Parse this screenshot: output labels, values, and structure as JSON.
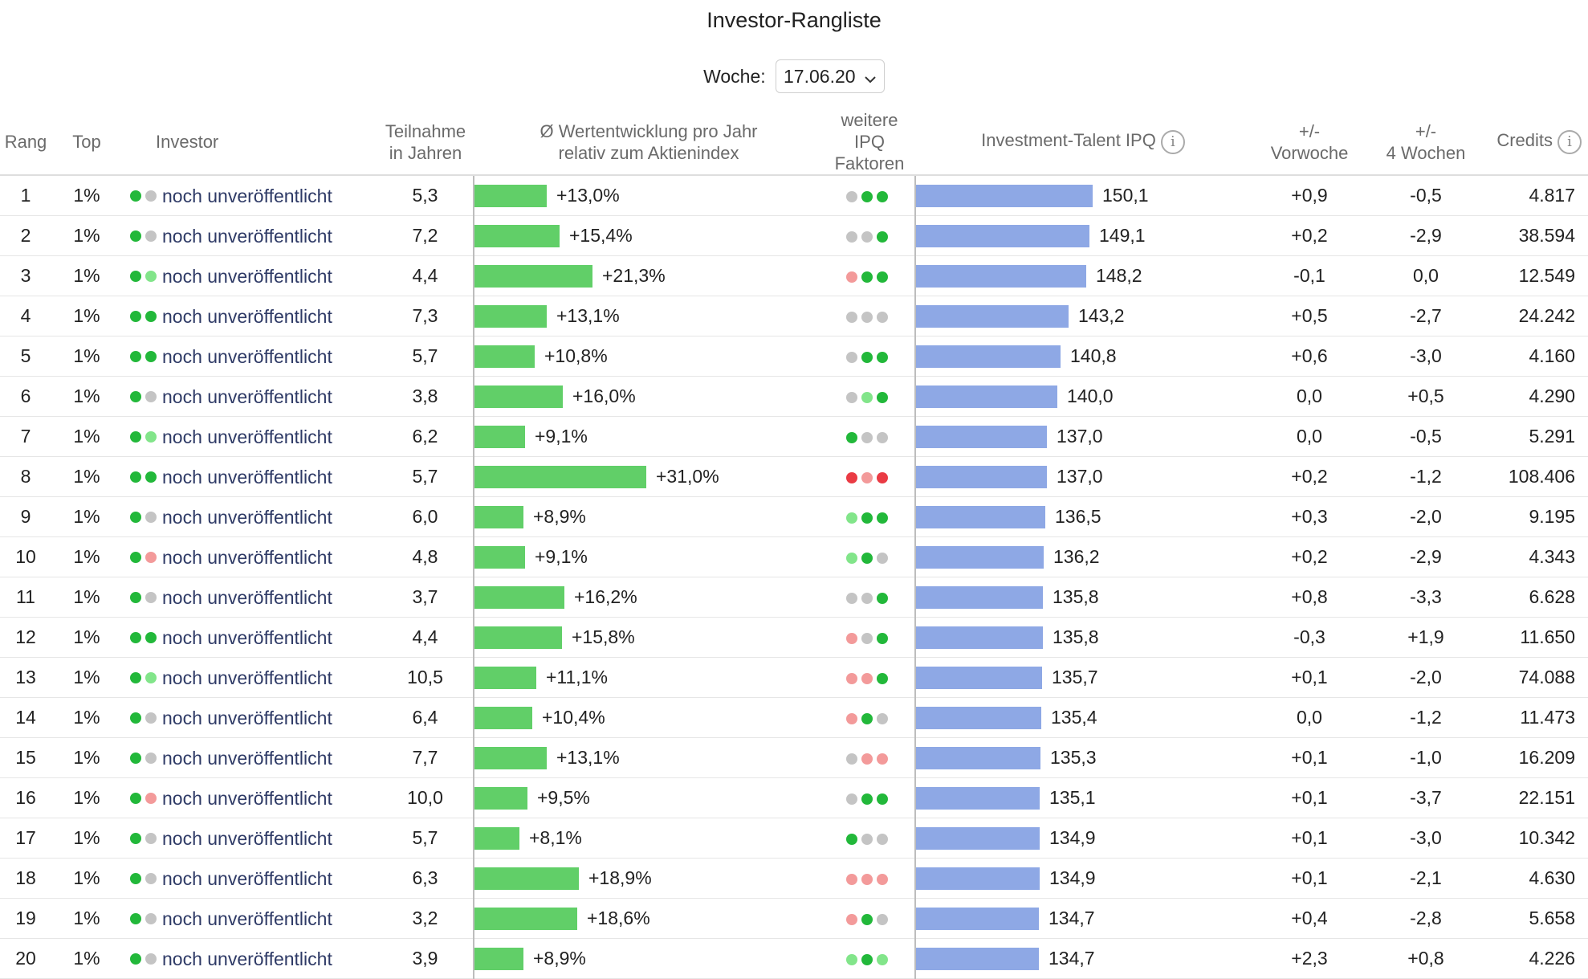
{
  "title": "Investor-Rangliste",
  "week": {
    "label": "Woche:",
    "value": "17.06.20"
  },
  "colors": {
    "green": "#22b83a",
    "light_green": "#82e58a",
    "gray": "#c4c4c4",
    "light_red": "#f39a9a",
    "red": "#ea3b44",
    "perf_bar": "#61cf68",
    "ipq_bar": "#8ea8e5"
  },
  "headers": {
    "rang": "Rang",
    "top": "Top",
    "investor": "Investor",
    "teilnahme": [
      "Teilnahme",
      "in Jahren"
    ],
    "wertentwicklung": [
      "Ø Wertentwicklung pro Jahr",
      "relativ zum Aktienindex"
    ],
    "faktoren": [
      "weitere IPQ",
      "Faktoren"
    ],
    "ipq": "Investment-Talent IPQ",
    "vorwoche": [
      "+/-",
      "Vorwoche"
    ],
    "wochen4": [
      "+/-",
      "4 Wochen"
    ],
    "credits": "Credits",
    "info_icon": "info-icon",
    "info_glyph": "i"
  },
  "rows": [
    {
      "rang": "1",
      "top": "1%",
      "inv_dots": [
        "green",
        "gray"
      ],
      "name": "noch unveröffentlicht",
      "teilnahme": "5,3",
      "perf": 13.0,
      "perf_label": "+13,0%",
      "factors": [
        "gray",
        "green",
        "green"
      ],
      "ipq": 150.1,
      "ipq_label": "150,1",
      "vorwoche": "+0,9",
      "wochen4": "-0,5",
      "credits": "4.817"
    },
    {
      "rang": "2",
      "top": "1%",
      "inv_dots": [
        "green",
        "gray"
      ],
      "name": "noch unveröffentlicht",
      "teilnahme": "7,2",
      "perf": 15.4,
      "perf_label": "+15,4%",
      "factors": [
        "gray",
        "gray",
        "green"
      ],
      "ipq": 149.1,
      "ipq_label": "149,1",
      "vorwoche": "+0,2",
      "wochen4": "-2,9",
      "credits": "38.594"
    },
    {
      "rang": "3",
      "top": "1%",
      "inv_dots": [
        "green",
        "light_green"
      ],
      "name": "noch unveröffentlicht",
      "teilnahme": "4,4",
      "perf": 21.3,
      "perf_label": "+21,3%",
      "factors": [
        "light_red",
        "green",
        "green"
      ],
      "ipq": 148.2,
      "ipq_label": "148,2",
      "vorwoche": "-0,1",
      "wochen4": "0,0",
      "credits": "12.549"
    },
    {
      "rang": "4",
      "top": "1%",
      "inv_dots": [
        "green",
        "green"
      ],
      "name": "noch unveröffentlicht",
      "teilnahme": "7,3",
      "perf": 13.1,
      "perf_label": "+13,1%",
      "factors": [
        "gray",
        "gray",
        "gray"
      ],
      "ipq": 143.2,
      "ipq_label": "143,2",
      "vorwoche": "+0,5",
      "wochen4": "-2,7",
      "credits": "24.242"
    },
    {
      "rang": "5",
      "top": "1%",
      "inv_dots": [
        "green",
        "green"
      ],
      "name": "noch unveröffentlicht",
      "teilnahme": "5,7",
      "perf": 10.8,
      "perf_label": "+10,8%",
      "factors": [
        "gray",
        "green",
        "green"
      ],
      "ipq": 140.8,
      "ipq_label": "140,8",
      "vorwoche": "+0,6",
      "wochen4": "-3,0",
      "credits": "4.160"
    },
    {
      "rang": "6",
      "top": "1%",
      "inv_dots": [
        "green",
        "gray"
      ],
      "name": "noch unveröffentlicht",
      "teilnahme": "3,8",
      "perf": 16.0,
      "perf_label": "+16,0%",
      "factors": [
        "gray",
        "light_green",
        "green"
      ],
      "ipq": 140.0,
      "ipq_label": "140,0",
      "vorwoche": "0,0",
      "wochen4": "+0,5",
      "credits": "4.290"
    },
    {
      "rang": "7",
      "top": "1%",
      "inv_dots": [
        "green",
        "light_green"
      ],
      "name": "noch unveröffentlicht",
      "teilnahme": "6,2",
      "perf": 9.1,
      "perf_label": "+9,1%",
      "factors": [
        "green",
        "gray",
        "gray"
      ],
      "ipq": 137.0,
      "ipq_label": "137,0",
      "vorwoche": "0,0",
      "wochen4": "-0,5",
      "credits": "5.291"
    },
    {
      "rang": "8",
      "top": "1%",
      "inv_dots": [
        "green",
        "green"
      ],
      "name": "noch unveröffentlicht",
      "teilnahme": "5,7",
      "perf": 31.0,
      "perf_label": "+31,0%",
      "factors": [
        "red",
        "light_red",
        "red"
      ],
      "ipq": 137.0,
      "ipq_label": "137,0",
      "vorwoche": "+0,2",
      "wochen4": "-1,2",
      "credits": "108.406"
    },
    {
      "rang": "9",
      "top": "1%",
      "inv_dots": [
        "green",
        "gray"
      ],
      "name": "noch unveröffentlicht",
      "teilnahme": "6,0",
      "perf": 8.9,
      "perf_label": "+8,9%",
      "factors": [
        "light_green",
        "green",
        "green"
      ],
      "ipq": 136.5,
      "ipq_label": "136,5",
      "vorwoche": "+0,3",
      "wochen4": "-2,0",
      "credits": "9.195"
    },
    {
      "rang": "10",
      "top": "1%",
      "inv_dots": [
        "green",
        "light_red"
      ],
      "name": "noch unveröffentlicht",
      "teilnahme": "4,8",
      "perf": 9.1,
      "perf_label": "+9,1%",
      "factors": [
        "light_green",
        "green",
        "gray"
      ],
      "ipq": 136.2,
      "ipq_label": "136,2",
      "vorwoche": "+0,2",
      "wochen4": "-2,9",
      "credits": "4.343"
    },
    {
      "rang": "11",
      "top": "1%",
      "inv_dots": [
        "green",
        "gray"
      ],
      "name": "noch unveröffentlicht",
      "teilnahme": "3,7",
      "perf": 16.2,
      "perf_label": "+16,2%",
      "factors": [
        "gray",
        "gray",
        "green"
      ],
      "ipq": 135.8,
      "ipq_label": "135,8",
      "vorwoche": "+0,8",
      "wochen4": "-3,3",
      "credits": "6.628"
    },
    {
      "rang": "12",
      "top": "1%",
      "inv_dots": [
        "green",
        "green"
      ],
      "name": "noch unveröffentlicht",
      "teilnahme": "4,4",
      "perf": 15.8,
      "perf_label": "+15,8%",
      "factors": [
        "light_red",
        "gray",
        "green"
      ],
      "ipq": 135.8,
      "ipq_label": "135,8",
      "vorwoche": "-0,3",
      "wochen4": "+1,9",
      "credits": "11.650"
    },
    {
      "rang": "13",
      "top": "1%",
      "inv_dots": [
        "green",
        "light_green"
      ],
      "name": "noch unveröffentlicht",
      "teilnahme": "10,5",
      "perf": 11.1,
      "perf_label": "+11,1%",
      "factors": [
        "light_red",
        "light_red",
        "green"
      ],
      "ipq": 135.7,
      "ipq_label": "135,7",
      "vorwoche": "+0,1",
      "wochen4": "-2,0",
      "credits": "74.088"
    },
    {
      "rang": "14",
      "top": "1%",
      "inv_dots": [
        "green",
        "gray"
      ],
      "name": "noch unveröffentlicht",
      "teilnahme": "6,4",
      "perf": 10.4,
      "perf_label": "+10,4%",
      "factors": [
        "light_red",
        "green",
        "gray"
      ],
      "ipq": 135.4,
      "ipq_label": "135,4",
      "vorwoche": "0,0",
      "wochen4": "-1,2",
      "credits": "11.473"
    },
    {
      "rang": "15",
      "top": "1%",
      "inv_dots": [
        "green",
        "gray"
      ],
      "name": "noch unveröffentlicht",
      "teilnahme": "7,7",
      "perf": 13.1,
      "perf_label": "+13,1%",
      "factors": [
        "gray",
        "light_red",
        "light_red"
      ],
      "ipq": 135.3,
      "ipq_label": "135,3",
      "vorwoche": "+0,1",
      "wochen4": "-1,0",
      "credits": "16.209"
    },
    {
      "rang": "16",
      "top": "1%",
      "inv_dots": [
        "green",
        "light_red"
      ],
      "name": "noch unveröffentlicht",
      "teilnahme": "10,0",
      "perf": 9.5,
      "perf_label": "+9,5%",
      "factors": [
        "gray",
        "green",
        "green"
      ],
      "ipq": 135.1,
      "ipq_label": "135,1",
      "vorwoche": "+0,1",
      "wochen4": "-3,7",
      "credits": "22.151"
    },
    {
      "rang": "17",
      "top": "1%",
      "inv_dots": [
        "green",
        "gray"
      ],
      "name": "noch unveröffentlicht",
      "teilnahme": "5,7",
      "perf": 8.1,
      "perf_label": "+8,1%",
      "factors": [
        "green",
        "gray",
        "gray"
      ],
      "ipq": 134.9,
      "ipq_label": "134,9",
      "vorwoche": "+0,1",
      "wochen4": "-3,0",
      "credits": "10.342"
    },
    {
      "rang": "18",
      "top": "1%",
      "inv_dots": [
        "green",
        "gray"
      ],
      "name": "noch unveröffentlicht",
      "teilnahme": "6,3",
      "perf": 18.9,
      "perf_label": "+18,9%",
      "factors": [
        "light_red",
        "light_red",
        "light_red"
      ],
      "ipq": 134.9,
      "ipq_label": "134,9",
      "vorwoche": "+0,1",
      "wochen4": "-2,1",
      "credits": "4.630"
    },
    {
      "rang": "19",
      "top": "1%",
      "inv_dots": [
        "green",
        "gray"
      ],
      "name": "noch unveröffentlicht",
      "teilnahme": "3,2",
      "perf": 18.6,
      "perf_label": "+18,6%",
      "factors": [
        "light_red",
        "green",
        "gray"
      ],
      "ipq": 134.7,
      "ipq_label": "134,7",
      "vorwoche": "+0,4",
      "wochen4": "-2,8",
      "credits": "5.658"
    },
    {
      "rang": "20",
      "top": "1%",
      "inv_dots": [
        "green",
        "gray"
      ],
      "name": "noch unveröffentlicht",
      "teilnahme": "3,9",
      "perf": 8.9,
      "perf_label": "+8,9%",
      "factors": [
        "light_green",
        "green",
        "light_green"
      ],
      "ipq": 134.7,
      "ipq_label": "134,7",
      "vorwoche": "+2,3",
      "wochen4": "+0,8",
      "credits": "4.226"
    }
  ]
}
